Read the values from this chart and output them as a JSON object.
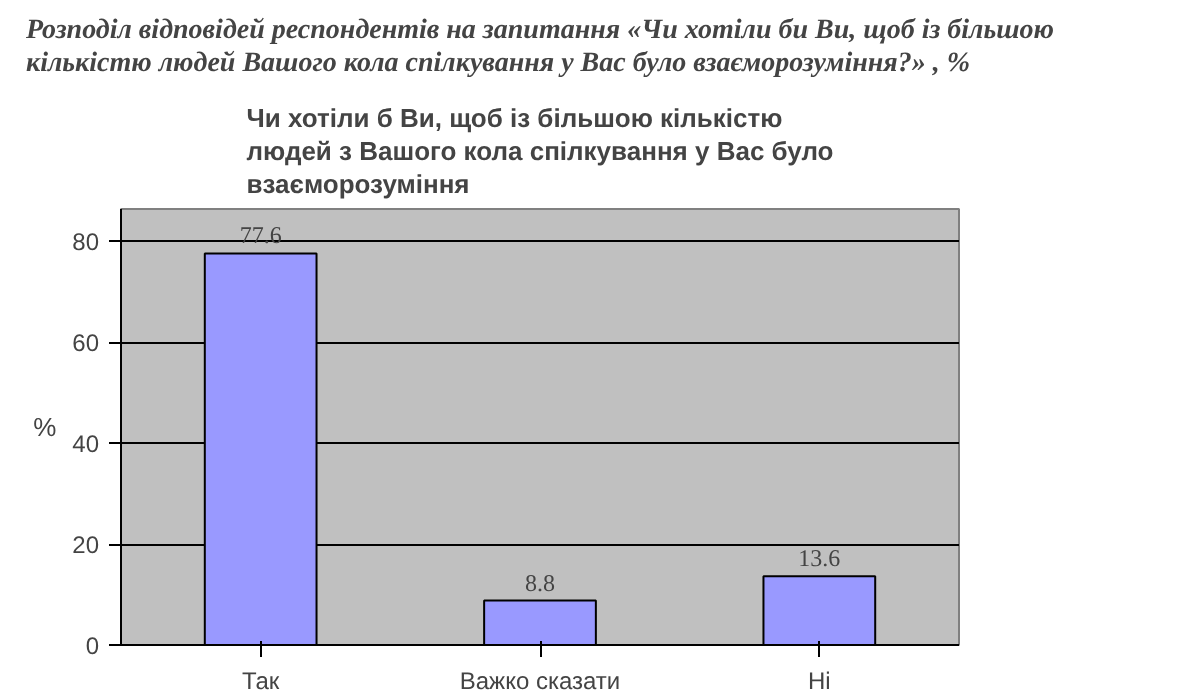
{
  "chart_data": {
    "type": "bar",
    "title": "Розподіл відповідей респондентів на запитання «Чи хотіли би Ви, щоб із більшою кількістю людей Вашого кола спілкування у Вас було взаєморозуміння?» , %",
    "subtitle": "Чи хотіли б Ви, щоб із більшою кількістю людей з Вашого кола спілкування у Вас було взаєморозуміння",
    "ylabel": "%",
    "categories": [
      "Так",
      "Важко сказати",
      "Ні"
    ],
    "values": [
      77.6,
      8.8,
      13.6
    ],
    "color": "#9999ff",
    "ylim": [
      0,
      80
    ],
    "yticks": [
      0,
      20,
      40,
      60,
      80
    ],
    "grid": "y",
    "data_labels": true
  }
}
